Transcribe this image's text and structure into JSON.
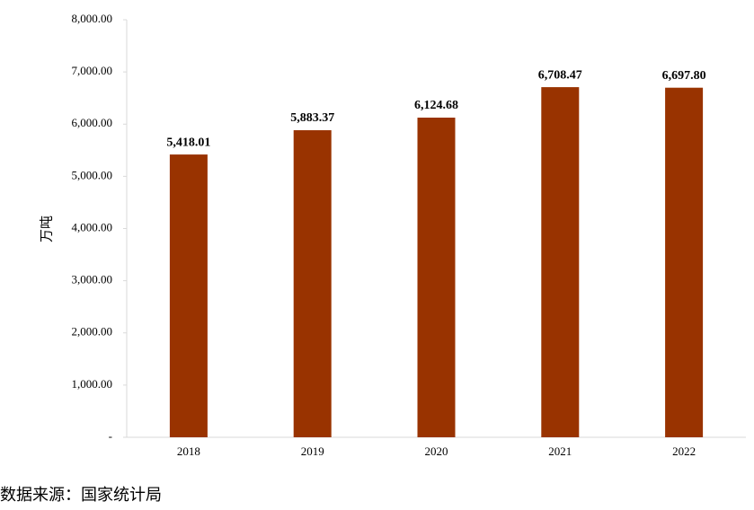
{
  "chart_data": {
    "type": "bar",
    "y_label": "万吨",
    "source": "数据来源：国家统计局",
    "categories": [
      "2018",
      "2019",
      "2020",
      "2021",
      "2022"
    ],
    "values": [
      5418.01,
      5883.37,
      6124.68,
      6708.47,
      6697.8
    ],
    "value_labels": [
      "5,418.01",
      "5,883.37",
      "6,124.68",
      "6,708.47",
      "6,697.80"
    ],
    "color": "#993300",
    "ylim": [
      0,
      8000
    ],
    "yticks": [
      {
        "value": 0,
        "label": "-"
      },
      {
        "value": 1000,
        "label": "1,000.00"
      },
      {
        "value": 2000,
        "label": "2,000.00"
      },
      {
        "value": 3000,
        "label": "3,000.00"
      },
      {
        "value": 4000,
        "label": "4,000.00"
      },
      {
        "value": 5000,
        "label": "5,000.00"
      },
      {
        "value": 6000,
        "label": "6,000.00"
      },
      {
        "value": 7000,
        "label": "7,000.00"
      },
      {
        "value": 8000,
        "label": "8,000.00"
      }
    ],
    "grid": false
  }
}
